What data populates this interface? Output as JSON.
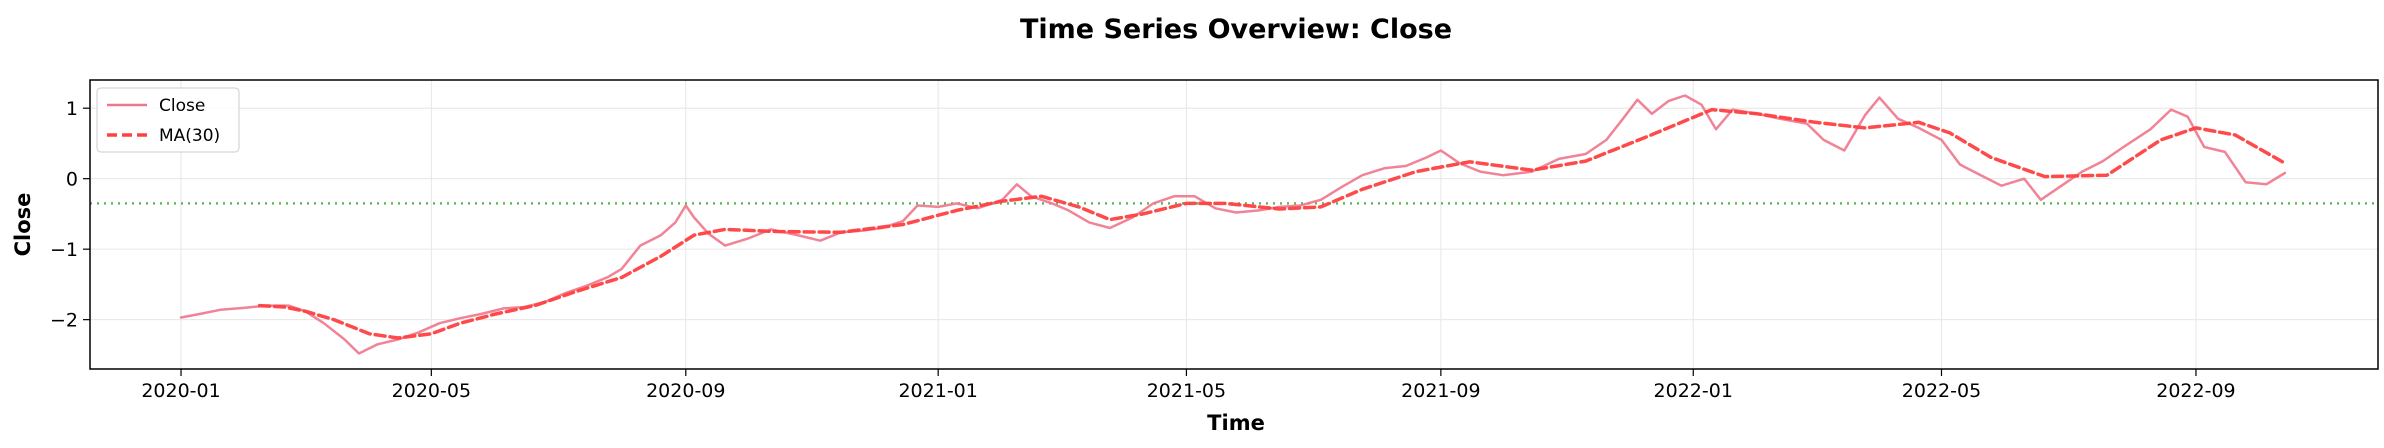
{
  "chart_data": {
    "type": "line",
    "title": "Time Series Overview: Close",
    "xlabel": "Time",
    "ylabel": "Close",
    "x_start": "2020-01-01",
    "x_end": "2022-10-14",
    "xlim": [
      "2019-11-18",
      "2022-11-28"
    ],
    "ylim": [
      -2.7,
      1.4
    ],
    "xticks": [
      {
        "date": "2020-01-01",
        "label": "2020-01"
      },
      {
        "date": "2020-05-01",
        "label": "2020-05"
      },
      {
        "date": "2020-09-01",
        "label": "2020-09"
      },
      {
        "date": "2021-01-01",
        "label": "2021-01"
      },
      {
        "date": "2021-05-01",
        "label": "2021-05"
      },
      {
        "date": "2021-09-01",
        "label": "2021-09"
      },
      {
        "date": "2022-01-01",
        "label": "2022-01"
      },
      {
        "date": "2022-05-01",
        "label": "2022-05"
      },
      {
        "date": "2022-09-01",
        "label": "2022-09"
      }
    ],
    "yticks": [
      -2,
      -1,
      0,
      1
    ],
    "grid": true,
    "legend_position": "upper-left",
    "reference_line": {
      "y": -0.35,
      "color": "#2ca02c",
      "style": "dotted"
    },
    "series": [
      {
        "name": "Close",
        "color": "#f0768c",
        "style": "solid",
        "points": [
          [
            "2020-01-01",
            -1.97
          ],
          [
            "2020-01-10",
            -1.92
          ],
          [
            "2020-01-20",
            -1.86
          ],
          [
            "2020-02-01",
            -1.83
          ],
          [
            "2020-02-12",
            -1.8
          ],
          [
            "2020-02-22",
            -1.8
          ],
          [
            "2020-03-01",
            -1.88
          ],
          [
            "2020-03-10",
            -2.05
          ],
          [
            "2020-03-20",
            -2.28
          ],
          [
            "2020-03-27",
            -2.48
          ],
          [
            "2020-04-05",
            -2.35
          ],
          [
            "2020-04-15",
            -2.28
          ],
          [
            "2020-04-25",
            -2.18
          ],
          [
            "2020-05-05",
            -2.05
          ],
          [
            "2020-05-15",
            -1.98
          ],
          [
            "2020-05-25",
            -1.92
          ],
          [
            "2020-06-05",
            -1.84
          ],
          [
            "2020-06-15",
            -1.82
          ],
          [
            "2020-06-25",
            -1.75
          ],
          [
            "2020-07-05",
            -1.62
          ],
          [
            "2020-07-15",
            -1.52
          ],
          [
            "2020-07-25",
            -1.4
          ],
          [
            "2020-08-01",
            -1.28
          ],
          [
            "2020-08-10",
            -0.95
          ],
          [
            "2020-08-20",
            -0.8
          ],
          [
            "2020-08-27",
            -0.62
          ],
          [
            "2020-09-01",
            -0.38
          ],
          [
            "2020-09-05",
            -0.55
          ],
          [
            "2020-09-12",
            -0.78
          ],
          [
            "2020-09-20",
            -0.95
          ],
          [
            "2020-10-01",
            -0.85
          ],
          [
            "2020-10-12",
            -0.72
          ],
          [
            "2020-10-25",
            -0.8
          ],
          [
            "2020-11-05",
            -0.88
          ],
          [
            "2020-11-15",
            -0.76
          ],
          [
            "2020-11-25",
            -0.74
          ],
          [
            "2020-12-05",
            -0.7
          ],
          [
            "2020-12-15",
            -0.6
          ],
          [
            "2020-12-22",
            -0.38
          ],
          [
            "2021-01-01",
            -0.4
          ],
          [
            "2021-01-10",
            -0.35
          ],
          [
            "2021-01-20",
            -0.42
          ],
          [
            "2021-02-01",
            -0.3
          ],
          [
            "2021-02-08",
            -0.08
          ],
          [
            "2021-02-15",
            -0.25
          ],
          [
            "2021-02-25",
            -0.35
          ],
          [
            "2021-03-05",
            -0.45
          ],
          [
            "2021-03-15",
            -0.62
          ],
          [
            "2021-03-25",
            -0.7
          ],
          [
            "2021-04-05",
            -0.55
          ],
          [
            "2021-04-15",
            -0.35
          ],
          [
            "2021-04-25",
            -0.25
          ],
          [
            "2021-05-05",
            -0.25
          ],
          [
            "2021-05-15",
            -0.42
          ],
          [
            "2021-05-25",
            -0.48
          ],
          [
            "2021-06-05",
            -0.45
          ],
          [
            "2021-06-15",
            -0.4
          ],
          [
            "2021-06-25",
            -0.38
          ],
          [
            "2021-07-05",
            -0.3
          ],
          [
            "2021-07-15",
            -0.12
          ],
          [
            "2021-07-25",
            0.05
          ],
          [
            "2021-08-05",
            0.15
          ],
          [
            "2021-08-15",
            0.18
          ],
          [
            "2021-08-25",
            0.3
          ],
          [
            "2021-09-01",
            0.4
          ],
          [
            "2021-09-10",
            0.22
          ],
          [
            "2021-09-20",
            0.1
          ],
          [
            "2021-10-01",
            0.05
          ],
          [
            "2021-10-15",
            0.1
          ],
          [
            "2021-10-28",
            0.28
          ],
          [
            "2021-11-10",
            0.35
          ],
          [
            "2021-11-20",
            0.55
          ],
          [
            "2021-11-28",
            0.85
          ],
          [
            "2021-12-05",
            1.12
          ],
          [
            "2021-12-12",
            0.92
          ],
          [
            "2021-12-20",
            1.1
          ],
          [
            "2021-12-28",
            1.18
          ],
          [
            "2022-01-05",
            1.05
          ],
          [
            "2022-01-12",
            0.7
          ],
          [
            "2022-01-20",
            0.98
          ],
          [
            "2022-02-01",
            0.92
          ],
          [
            "2022-02-12",
            0.85
          ],
          [
            "2022-02-25",
            0.78
          ],
          [
            "2022-03-05",
            0.55
          ],
          [
            "2022-03-15",
            0.4
          ],
          [
            "2022-03-25",
            0.9
          ],
          [
            "2022-04-01",
            1.15
          ],
          [
            "2022-04-10",
            0.85
          ],
          [
            "2022-04-20",
            0.72
          ],
          [
            "2022-05-01",
            0.55
          ],
          [
            "2022-05-10",
            0.2
          ],
          [
            "2022-05-20",
            0.05
          ],
          [
            "2022-05-30",
            -0.1
          ],
          [
            "2022-06-10",
            0.0
          ],
          [
            "2022-06-18",
            -0.3
          ],
          [
            "2022-06-28",
            -0.1
          ],
          [
            "2022-07-08",
            0.1
          ],
          [
            "2022-07-18",
            0.25
          ],
          [
            "2022-07-28",
            0.45
          ],
          [
            "2022-08-10",
            0.7
          ],
          [
            "2022-08-20",
            0.98
          ],
          [
            "2022-08-28",
            0.88
          ],
          [
            "2022-09-05",
            0.45
          ],
          [
            "2022-09-15",
            0.38
          ],
          [
            "2022-09-25",
            -0.05
          ],
          [
            "2022-10-05",
            -0.08
          ],
          [
            "2022-10-14",
            0.08
          ]
        ]
      },
      {
        "name": "MA(30)",
        "color": "#ff4040",
        "style": "dashed",
        "points": [
          [
            "2020-02-08",
            -1.8
          ],
          [
            "2020-02-20",
            -1.82
          ],
          [
            "2020-03-01",
            -1.88
          ],
          [
            "2020-03-15",
            -2.0
          ],
          [
            "2020-04-01",
            -2.2
          ],
          [
            "2020-04-15",
            -2.26
          ],
          [
            "2020-05-01",
            -2.2
          ],
          [
            "2020-05-15",
            -2.05
          ],
          [
            "2020-06-01",
            -1.92
          ],
          [
            "2020-06-20",
            -1.8
          ],
          [
            "2020-07-10",
            -1.6
          ],
          [
            "2020-08-01",
            -1.4
          ],
          [
            "2020-08-20",
            -1.1
          ],
          [
            "2020-09-05",
            -0.8
          ],
          [
            "2020-09-20",
            -0.72
          ],
          [
            "2020-10-15",
            -0.75
          ],
          [
            "2020-11-15",
            -0.76
          ],
          [
            "2020-12-15",
            -0.65
          ],
          [
            "2021-01-10",
            -0.45
          ],
          [
            "2021-02-01",
            -0.32
          ],
          [
            "2021-02-20",
            -0.25
          ],
          [
            "2021-03-10",
            -0.4
          ],
          [
            "2021-03-25",
            -0.58
          ],
          [
            "2021-04-10",
            -0.5
          ],
          [
            "2021-05-01",
            -0.35
          ],
          [
            "2021-05-20",
            -0.35
          ],
          [
            "2021-06-15",
            -0.43
          ],
          [
            "2021-07-05",
            -0.4
          ],
          [
            "2021-07-25",
            -0.15
          ],
          [
            "2021-08-20",
            0.1
          ],
          [
            "2021-09-15",
            0.24
          ],
          [
            "2021-10-15",
            0.12
          ],
          [
            "2021-11-10",
            0.25
          ],
          [
            "2021-12-10",
            0.6
          ],
          [
            "2022-01-10",
            0.98
          ],
          [
            "2022-02-01",
            0.92
          ],
          [
            "2022-03-01",
            0.8
          ],
          [
            "2022-03-25",
            0.72
          ],
          [
            "2022-04-20",
            0.8
          ],
          [
            "2022-05-05",
            0.65
          ],
          [
            "2022-05-25",
            0.3
          ],
          [
            "2022-06-20",
            0.03
          ],
          [
            "2022-07-20",
            0.05
          ],
          [
            "2022-08-15",
            0.55
          ],
          [
            "2022-09-01",
            0.72
          ],
          [
            "2022-09-20",
            0.62
          ],
          [
            "2022-10-14",
            0.22
          ]
        ]
      }
    ]
  }
}
